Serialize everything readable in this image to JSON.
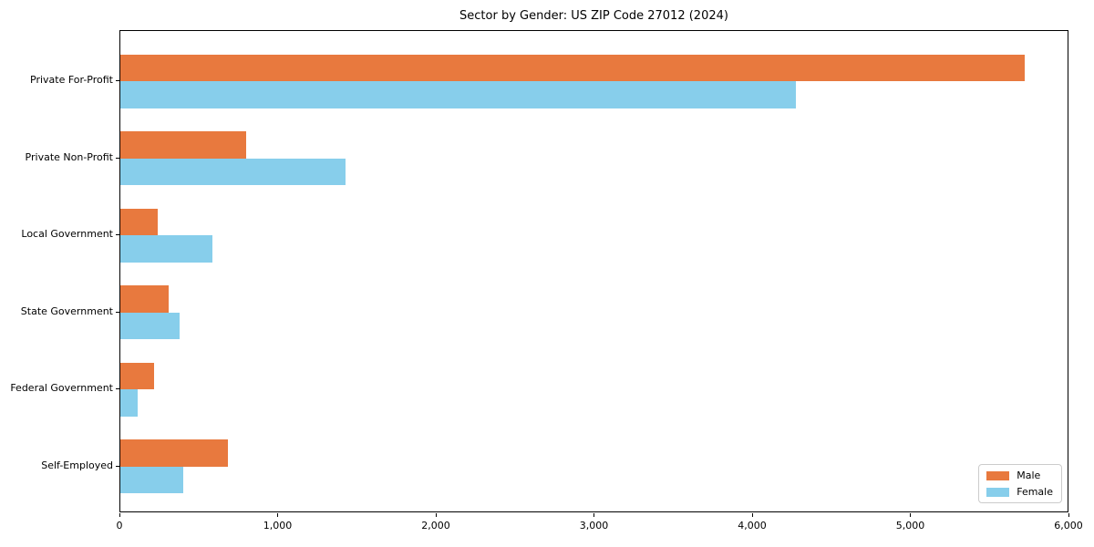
{
  "chart_data": {
    "type": "bar",
    "orientation": "horizontal",
    "title": "Sector by Gender: US ZIP Code 27012 (2024)",
    "categories": [
      "Private For-Profit",
      "Private Non-Profit",
      "Local Government",
      "State Government",
      "Federal Government",
      "Self-Employed"
    ],
    "series": [
      {
        "name": "Male",
        "color": "#e8793e",
        "values": [
          5717,
          795,
          236,
          305,
          213,
          680
        ]
      },
      {
        "name": "Female",
        "color": "#87ceeb",
        "values": [
          4270,
          1424,
          582,
          375,
          110,
          398
        ]
      }
    ],
    "xlabel": "",
    "ylabel": "",
    "xlim": [
      0,
      6000
    ],
    "x_ticks": [
      0,
      1000,
      2000,
      3000,
      4000,
      5000,
      6000
    ],
    "x_tick_labels": [
      "0",
      "1,000",
      "2,000",
      "3,000",
      "4,000",
      "5,000",
      "6,000"
    ],
    "legend_position": "lower right",
    "grid": false,
    "colors": {
      "axis": "#000000",
      "legend_border": "#cccccc",
      "background": "#ffffff"
    }
  }
}
